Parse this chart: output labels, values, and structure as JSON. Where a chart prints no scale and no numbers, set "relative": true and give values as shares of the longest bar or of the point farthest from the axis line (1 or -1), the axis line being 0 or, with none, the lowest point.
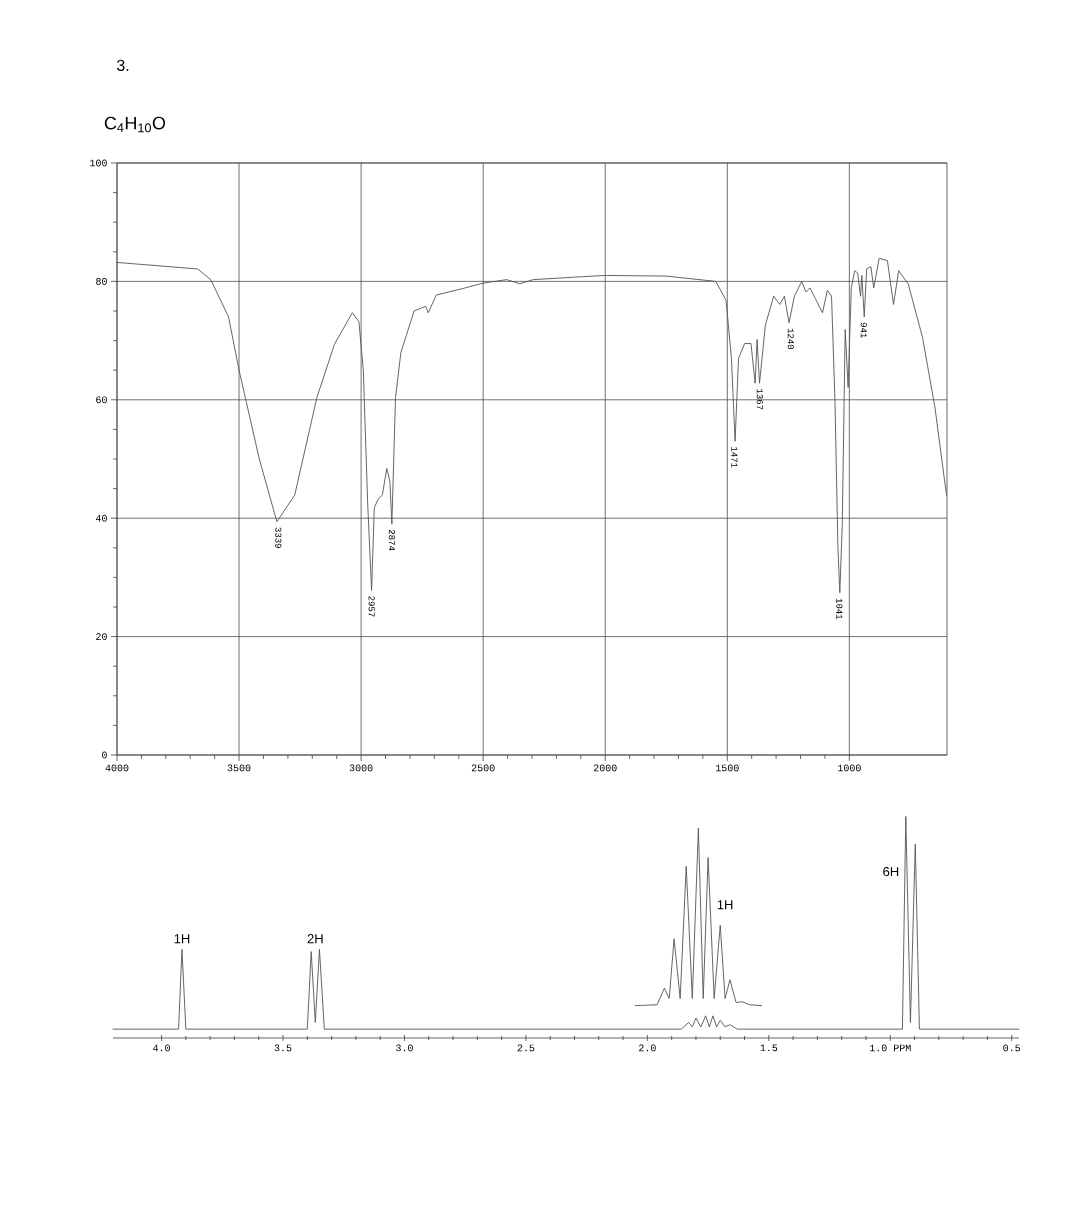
{
  "chart_data": [
    {
      "type": "line",
      "title": "3.",
      "subtitle": "C$_{4}$H$_{10}$O",
      "xlim": [
        4000,
        600
      ],
      "ylim": [
        0,
        100
      ],
      "xticks": [
        4000,
        3500,
        3000,
        2500,
        2000,
        1500,
        1000
      ],
      "yticks": [
        0,
        20,
        40,
        60,
        80,
        100
      ],
      "grid": true,
      "series": [
        {
          "color": "#555555",
          "x": [
            4000,
            3670,
            3616,
            3543,
            3500,
            3417,
            3345,
            3272,
            3181,
            3109,
            3036,
            3009,
            2991,
            2973,
            2957,
            2946,
            2931,
            2913,
            2895,
            2882,
            2874,
            2859,
            2837,
            2783,
            2736,
            2725,
            2692,
            2583,
            2500,
            2404,
            2350,
            2295,
            2090,
            2000,
            1751,
            1547,
            1505,
            1483,
            1468,
            1454,
            1429,
            1403,
            1386,
            1378,
            1368,
            1344,
            1310,
            1285,
            1266,
            1247,
            1225,
            1195,
            1178,
            1161,
            1110,
            1090,
            1073,
            1059,
            1047,
            1039,
            1029,
            1017,
            1005,
            992,
            978,
            966,
            954,
            949,
            939,
            929,
            912,
            900,
            878,
            844,
            819,
            798,
            759,
            700,
            649,
            602
          ],
          "values": [
            83.2,
            82.1,
            80.3,
            74,
            65,
            50,
            39.4,
            43.9,
            60.4,
            69.4,
            74.7,
            73.2,
            65,
            42.4,
            27.8,
            41.7,
            43.2,
            43.9,
            48.4,
            46.2,
            39,
            60.4,
            68,
            75,
            75.8,
            74.7,
            77.7,
            78.8,
            79.7,
            80.3,
            79.6,
            80.3,
            80.8,
            81,
            80.9,
            80,
            76.8,
            67,
            53,
            67,
            69.5,
            69.5,
            62.8,
            70.2,
            62.8,
            72.6,
            77.5,
            76.1,
            77.5,
            73,
            77.5,
            80,
            78.2,
            78.9,
            74.7,
            78.5,
            77.5,
            60,
            35.4,
            27.4,
            39,
            71.9,
            62.1,
            78.9,
            81.8,
            81.4,
            77.5,
            81,
            74,
            82.1,
            82.5,
            78.9,
            83.9,
            83.5,
            76.1,
            81.8,
            79.6,
            70.5,
            58.6,
            43.9
          ]
        }
      ],
      "annotations": [
        {
          "text": "3339",
          "x": 3339,
          "y": 39.4
        },
        {
          "text": "2957",
          "x": 2957,
          "y": 27.8
        },
        {
          "text": "2874",
          "x": 2874,
          "y": 39
        },
        {
          "text": "1471",
          "x": 1471,
          "y": 53
        },
        {
          "text": "1367",
          "x": 1367,
          "y": 62.8
        },
        {
          "text": "1240",
          "x": 1240,
          "y": 73
        },
        {
          "text": "1041",
          "x": 1041,
          "y": 27.4
        },
        {
          "text": "941",
          "x": 941,
          "y": 74
        }
      ]
    },
    {
      "type": "line",
      "relative": true,
      "xlim": [
        4.2,
        0.47
      ],
      "xticks": [
        {
          "value": 4,
          "label": "4.0"
        },
        {
          "value": 3.5,
          "label": "3.5"
        },
        {
          "value": 3,
          "label": "3.0"
        },
        {
          "value": 2.5,
          "label": "2.5"
        },
        {
          "value": 2,
          "label": "2.0"
        },
        {
          "value": 1.5,
          "label": "1.5"
        },
        {
          "value": 1,
          "label": "1.0 PPM"
        },
        {
          "value": 0.5,
          "label": "0.5"
        }
      ],
      "series": [
        {
          "color": "#555555",
          "x": [
            4.2,
            3.93,
            3.916,
            3.9,
            3.4,
            3.384,
            3.367,
            3.35,
            3.33,
            1.86,
            1.83,
            1.815,
            1.8,
            1.78,
            1.76,
            1.745,
            1.73,
            1.715,
            1.7,
            1.68,
            1.66,
            1.63,
            0.95,
            0.936,
            0.917,
            0.897,
            0.88,
            0.47
          ],
          "values": [
            0.04,
            0.04,
            0.4,
            0.04,
            0.04,
            0.39,
            0.07,
            0.4,
            0.04,
            0.04,
            0.07,
            0.05,
            0.09,
            0.05,
            0.1,
            0.05,
            0.1,
            0.05,
            0.08,
            0.05,
            0.06,
            0.04,
            0.04,
            1.0,
            0.07,
            0.875,
            0.04,
            0.04
          ]
        },
        {
          "color": "#555555",
          "x": [
            2.05,
            1.96,
            1.93,
            1.91,
            1.89,
            1.865,
            1.84,
            1.815,
            1.79,
            1.77,
            1.75,
            1.725,
            1.7,
            1.68,
            1.66,
            1.635,
            1.61,
            1.58,
            1.53
          ],
          "values": [
            0.146,
            0.15,
            0.225,
            0.178,
            0.448,
            0.178,
            0.775,
            0.178,
            0.947,
            0.178,
            0.814,
            0.178,
            0.509,
            0.178,
            0.263,
            0.16,
            0.164,
            0.15,
            0.146
          ]
        }
      ],
      "annotations": [
        {
          "text": "1H",
          "x": 3.916,
          "y": 0.4
        },
        {
          "text": "2H",
          "x": 3.367,
          "y": 0.4
        },
        "1H",
        "6H"
      ]
    }
  ]
}
